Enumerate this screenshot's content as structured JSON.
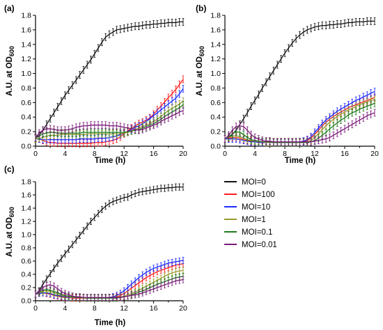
{
  "chart_data": [
    {
      "type": "line",
      "panel_label": "(a)",
      "xlabel": "Time (h)",
      "ylabel": "A.U. at OD",
      "ylabel_sub": "600",
      "xlim": [
        0,
        20
      ],
      "ylim": [
        0,
        1.8
      ],
      "xticks": [
        0,
        4,
        8,
        12,
        16,
        20
      ],
      "yticks": [
        0.0,
        0.2,
        0.4,
        0.6,
        0.8,
        1.0,
        1.2,
        1.4,
        1.6,
        1.8
      ],
      "x": [
        0,
        0.5,
        1,
        1.5,
        2,
        2.5,
        3,
        3.5,
        4,
        4.5,
        5,
        5.5,
        6,
        6.5,
        7,
        7.5,
        8,
        8.5,
        9,
        9.5,
        10,
        10.5,
        11,
        11.5,
        12,
        12.5,
        13,
        13.5,
        14,
        14.5,
        15,
        15.5,
        16,
        16.5,
        17,
        17.5,
        18,
        18.5,
        19,
        19.5,
        20
      ],
      "series": [
        {
          "name": "MOI=0",
          "values": [
            0.12,
            0.15,
            0.22,
            0.3,
            0.38,
            0.46,
            0.54,
            0.62,
            0.7,
            0.77,
            0.84,
            0.91,
            0.98,
            1.05,
            1.12,
            1.19,
            1.27,
            1.35,
            1.43,
            1.5,
            1.54,
            1.57,
            1.6,
            1.61,
            1.62,
            1.63,
            1.64,
            1.65,
            1.65,
            1.66,
            1.67,
            1.67,
            1.68,
            1.68,
            1.69,
            1.69,
            1.7,
            1.7,
            1.7,
            1.71,
            1.71
          ]
        },
        {
          "name": "MOI=100",
          "values": [
            0.1,
            0.1,
            0.08,
            0.06,
            0.05,
            0.05,
            0.04,
            0.04,
            0.04,
            0.04,
            0.04,
            0.04,
            0.04,
            0.04,
            0.04,
            0.04,
            0.05,
            0.05,
            0.05,
            0.06,
            0.07,
            0.08,
            0.1,
            0.13,
            0.17,
            0.21,
            0.25,
            0.28,
            0.31,
            0.33,
            0.36,
            0.39,
            0.44,
            0.5,
            0.55,
            0.61,
            0.67,
            0.72,
            0.78,
            0.85,
            0.92
          ]
        },
        {
          "name": "MOI=10",
          "values": [
            0.1,
            0.1,
            0.09,
            0.09,
            0.09,
            0.09,
            0.09,
            0.09,
            0.09,
            0.09,
            0.09,
            0.09,
            0.1,
            0.1,
            0.1,
            0.1,
            0.1,
            0.11,
            0.11,
            0.11,
            0.12,
            0.13,
            0.14,
            0.16,
            0.18,
            0.2,
            0.23,
            0.26,
            0.28,
            0.31,
            0.34,
            0.38,
            0.42,
            0.46,
            0.5,
            0.54,
            0.58,
            0.62,
            0.66,
            0.72,
            0.79
          ]
        },
        {
          "name": "MOI=1",
          "values": [
            0.1,
            0.11,
            0.12,
            0.14,
            0.15,
            0.15,
            0.15,
            0.16,
            0.16,
            0.16,
            0.16,
            0.16,
            0.16,
            0.16,
            0.17,
            0.17,
            0.17,
            0.17,
            0.17,
            0.17,
            0.17,
            0.17,
            0.17,
            0.17,
            0.18,
            0.19,
            0.21,
            0.23,
            0.25,
            0.27,
            0.29,
            0.31,
            0.34,
            0.37,
            0.41,
            0.45,
            0.49,
            0.52,
            0.55,
            0.58,
            0.62
          ]
        },
        {
          "name": "MOI=0.1",
          "values": [
            0.11,
            0.14,
            0.17,
            0.18,
            0.19,
            0.19,
            0.18,
            0.18,
            0.18,
            0.18,
            0.18,
            0.18,
            0.18,
            0.19,
            0.19,
            0.19,
            0.19,
            0.19,
            0.19,
            0.19,
            0.19,
            0.19,
            0.19,
            0.19,
            0.19,
            0.2,
            0.21,
            0.22,
            0.23,
            0.25,
            0.27,
            0.29,
            0.31,
            0.34,
            0.37,
            0.41,
            0.44,
            0.47,
            0.5,
            0.53,
            0.57
          ]
        },
        {
          "name": "MOI=0.01",
          "values": [
            0.12,
            0.18,
            0.22,
            0.24,
            0.24,
            0.23,
            0.22,
            0.22,
            0.22,
            0.23,
            0.24,
            0.26,
            0.27,
            0.28,
            0.28,
            0.29,
            0.29,
            0.29,
            0.29,
            0.29,
            0.28,
            0.28,
            0.28,
            0.27,
            0.26,
            0.25,
            0.24,
            0.23,
            0.22,
            0.23,
            0.25,
            0.27,
            0.29,
            0.31,
            0.34,
            0.37,
            0.39,
            0.42,
            0.44,
            0.47,
            0.49
          ]
        }
      ]
    },
    {
      "type": "line",
      "panel_label": "(b)",
      "xlabel": "Time (h)",
      "ylabel": "A.U. at OD",
      "ylabel_sub": "600",
      "xlim": [
        0,
        20
      ],
      "ylim": [
        0,
        1.8
      ],
      "xticks": [
        0,
        4,
        8,
        12,
        16,
        20
      ],
      "yticks": [
        0.0,
        0.2,
        0.4,
        0.6,
        0.8,
        1.0,
        1.2,
        1.4,
        1.6,
        1.8
      ],
      "x": [
        0,
        0.5,
        1,
        1.5,
        2,
        2.5,
        3,
        3.5,
        4,
        4.5,
        5,
        5.5,
        6,
        6.5,
        7,
        7.5,
        8,
        8.5,
        9,
        9.5,
        10,
        10.5,
        11,
        11.5,
        12,
        12.5,
        13,
        13.5,
        14,
        14.5,
        15,
        15.5,
        16,
        16.5,
        17,
        17.5,
        18,
        18.5,
        19,
        19.5,
        20
      ],
      "series": [
        {
          "name": "MOI=0",
          "values": [
            0.1,
            0.12,
            0.16,
            0.22,
            0.3,
            0.38,
            0.46,
            0.55,
            0.63,
            0.71,
            0.8,
            0.88,
            0.96,
            1.04,
            1.12,
            1.2,
            1.28,
            1.35,
            1.42,
            1.48,
            1.53,
            1.57,
            1.6,
            1.62,
            1.64,
            1.65,
            1.66,
            1.66,
            1.67,
            1.67,
            1.68,
            1.68,
            1.69,
            1.7,
            1.7,
            1.71,
            1.71,
            1.71,
            1.72,
            1.72,
            1.72
          ]
        },
        {
          "name": "MOI=100",
          "values": [
            0.1,
            0.11,
            0.12,
            0.12,
            0.11,
            0.09,
            0.08,
            0.07,
            0.06,
            0.06,
            0.05,
            0.05,
            0.05,
            0.05,
            0.05,
            0.05,
            0.05,
            0.05,
            0.05,
            0.05,
            0.05,
            0.06,
            0.08,
            0.11,
            0.16,
            0.22,
            0.28,
            0.33,
            0.37,
            0.41,
            0.44,
            0.47,
            0.5,
            0.53,
            0.55,
            0.57,
            0.59,
            0.61,
            0.63,
            0.65,
            0.67
          ]
        },
        {
          "name": "MOI=10",
          "values": [
            0.1,
            0.1,
            0.1,
            0.1,
            0.09,
            0.08,
            0.07,
            0.06,
            0.06,
            0.05,
            0.05,
            0.05,
            0.05,
            0.05,
            0.05,
            0.05,
            0.05,
            0.05,
            0.05,
            0.05,
            0.06,
            0.07,
            0.09,
            0.13,
            0.19,
            0.25,
            0.31,
            0.36,
            0.4,
            0.44,
            0.48,
            0.51,
            0.54,
            0.57,
            0.6,
            0.63,
            0.65,
            0.68,
            0.7,
            0.73,
            0.75
          ]
        },
        {
          "name": "MOI=1",
          "values": [
            0.1,
            0.12,
            0.14,
            0.14,
            0.13,
            0.11,
            0.09,
            0.08,
            0.07,
            0.06,
            0.06,
            0.05,
            0.05,
            0.05,
            0.05,
            0.05,
            0.05,
            0.05,
            0.05,
            0.05,
            0.05,
            0.05,
            0.06,
            0.08,
            0.12,
            0.17,
            0.23,
            0.28,
            0.33,
            0.37,
            0.41,
            0.44,
            0.47,
            0.5,
            0.52,
            0.55,
            0.57,
            0.59,
            0.61,
            0.63,
            0.64
          ]
        },
        {
          "name": "MOI=0.1",
          "values": [
            0.1,
            0.13,
            0.17,
            0.2,
            0.19,
            0.16,
            0.12,
            0.09,
            0.08,
            0.07,
            0.06,
            0.06,
            0.06,
            0.05,
            0.05,
            0.05,
            0.05,
            0.05,
            0.05,
            0.05,
            0.05,
            0.05,
            0.05,
            0.06,
            0.08,
            0.11,
            0.15,
            0.19,
            0.24,
            0.28,
            0.32,
            0.36,
            0.39,
            0.43,
            0.46,
            0.48,
            0.51,
            0.53,
            0.55,
            0.57,
            0.59
          ]
        },
        {
          "name": "MOI=0.01",
          "values": [
            0.1,
            0.15,
            0.22,
            0.27,
            0.28,
            0.27,
            0.22,
            0.16,
            0.12,
            0.1,
            0.08,
            0.07,
            0.07,
            0.06,
            0.06,
            0.06,
            0.06,
            0.06,
            0.06,
            0.06,
            0.06,
            0.06,
            0.06,
            0.06,
            0.07,
            0.08,
            0.09,
            0.1,
            0.12,
            0.15,
            0.18,
            0.21,
            0.24,
            0.27,
            0.3,
            0.33,
            0.36,
            0.39,
            0.42,
            0.44,
            0.46
          ]
        }
      ]
    },
    {
      "type": "line",
      "panel_label": "(c)",
      "xlabel": "Time (h)",
      "ylabel": "A.U. at OD",
      "ylabel_sub": "600",
      "xlim": [
        0,
        20
      ],
      "ylim": [
        0,
        1.8
      ],
      "xticks": [
        0,
        4,
        8,
        12,
        16,
        20
      ],
      "yticks": [
        0.0,
        0.2,
        0.4,
        0.6,
        0.8,
        1.0,
        1.2,
        1.4,
        1.6,
        1.8
      ],
      "x": [
        0,
        0.5,
        1,
        1.5,
        2,
        2.5,
        3,
        3.5,
        4,
        4.5,
        5,
        5.5,
        6,
        6.5,
        7,
        7.5,
        8,
        8.5,
        9,
        9.5,
        10,
        10.5,
        11,
        11.5,
        12,
        12.5,
        13,
        13.5,
        14,
        14.5,
        15,
        15.5,
        16,
        16.5,
        17,
        17.5,
        18,
        18.5,
        19,
        19.5,
        20
      ],
      "series": [
        {
          "name": "MOI=0",
          "values": [
            0.1,
            0.15,
            0.25,
            0.33,
            0.41,
            0.49,
            0.57,
            0.64,
            0.71,
            0.78,
            0.85,
            0.92,
            0.99,
            1.06,
            1.13,
            1.2,
            1.26,
            1.32,
            1.38,
            1.43,
            1.47,
            1.5,
            1.52,
            1.54,
            1.56,
            1.57,
            1.6,
            1.62,
            1.64,
            1.65,
            1.66,
            1.67,
            1.68,
            1.69,
            1.7,
            1.7,
            1.71,
            1.71,
            1.72,
            1.72,
            1.72
          ]
        },
        {
          "name": "MOI=100",
          "values": [
            0.1,
            0.11,
            0.12,
            0.11,
            0.1,
            0.08,
            0.07,
            0.06,
            0.05,
            0.05,
            0.04,
            0.04,
            0.04,
            0.04,
            0.04,
            0.04,
            0.04,
            0.04,
            0.04,
            0.04,
            0.04,
            0.05,
            0.06,
            0.08,
            0.11,
            0.15,
            0.19,
            0.23,
            0.27,
            0.31,
            0.35,
            0.38,
            0.41,
            0.44,
            0.46,
            0.48,
            0.5,
            0.52,
            0.54,
            0.55,
            0.56
          ]
        },
        {
          "name": "MOI=10",
          "values": [
            0.1,
            0.11,
            0.12,
            0.12,
            0.11,
            0.09,
            0.08,
            0.07,
            0.06,
            0.05,
            0.05,
            0.05,
            0.05,
            0.05,
            0.04,
            0.04,
            0.04,
            0.04,
            0.04,
            0.04,
            0.05,
            0.06,
            0.08,
            0.11,
            0.15,
            0.2,
            0.25,
            0.3,
            0.35,
            0.39,
            0.43,
            0.46,
            0.49,
            0.51,
            0.53,
            0.55,
            0.57,
            0.58,
            0.59,
            0.6,
            0.61
          ]
        },
        {
          "name": "MOI=1",
          "values": [
            0.1,
            0.12,
            0.14,
            0.15,
            0.14,
            0.12,
            0.1,
            0.08,
            0.07,
            0.06,
            0.05,
            0.05,
            0.05,
            0.04,
            0.04,
            0.04,
            0.04,
            0.04,
            0.04,
            0.04,
            0.04,
            0.04,
            0.05,
            0.06,
            0.07,
            0.09,
            0.11,
            0.13,
            0.16,
            0.19,
            0.22,
            0.25,
            0.28,
            0.31,
            0.34,
            0.37,
            0.4,
            0.42,
            0.44,
            0.45,
            0.46
          ]
        },
        {
          "name": "MOI=0.1",
          "values": [
            0.1,
            0.13,
            0.16,
            0.17,
            0.16,
            0.14,
            0.12,
            0.1,
            0.08,
            0.07,
            0.06,
            0.05,
            0.05,
            0.05,
            0.04,
            0.04,
            0.04,
            0.04,
            0.04,
            0.04,
            0.04,
            0.04,
            0.04,
            0.05,
            0.06,
            0.07,
            0.09,
            0.11,
            0.13,
            0.15,
            0.17,
            0.2,
            0.22,
            0.25,
            0.27,
            0.29,
            0.31,
            0.33,
            0.35,
            0.36,
            0.37
          ]
        },
        {
          "name": "MOI=0.01",
          "values": [
            0.1,
            0.14,
            0.2,
            0.23,
            0.24,
            0.22,
            0.18,
            0.14,
            0.11,
            0.09,
            0.07,
            0.06,
            0.06,
            0.05,
            0.05,
            0.05,
            0.05,
            0.05,
            0.05,
            0.05,
            0.05,
            0.05,
            0.05,
            0.05,
            0.06,
            0.07,
            0.08,
            0.09,
            0.1,
            0.12,
            0.14,
            0.16,
            0.18,
            0.2,
            0.22,
            0.24,
            0.26,
            0.28,
            0.3,
            0.31,
            0.32
          ]
        }
      ]
    }
  ],
  "legend": {
    "position": "bottom-right",
    "entries": [
      {
        "label": "MOI=0",
        "color": "#111111"
      },
      {
        "label": "MOI=100",
        "color": "#ff1a1a"
      },
      {
        "label": "MOI=10",
        "color": "#1a2bff"
      },
      {
        "label": "MOI=1",
        "color": "#999a2e"
      },
      {
        "label": "MOI=0.1",
        "color": "#1c7a1c"
      },
      {
        "label": "MOI=0.01",
        "color": "#7a1a7a"
      }
    ]
  }
}
